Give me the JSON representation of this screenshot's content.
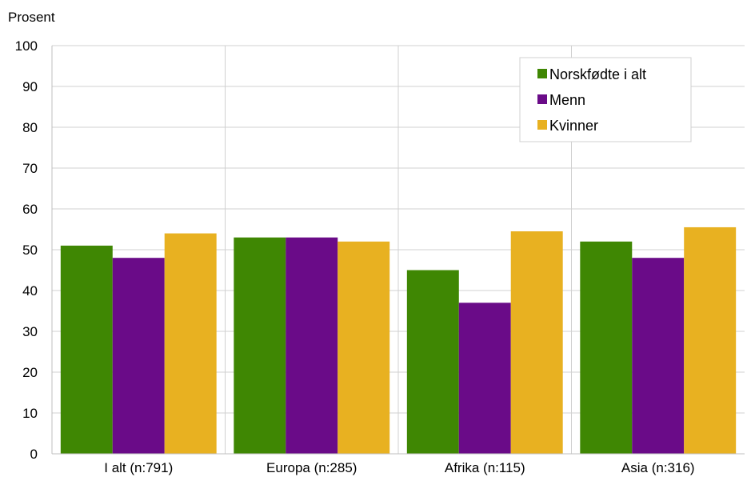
{
  "chart_data": {
    "type": "bar",
    "ylabel": "Prosent",
    "ylim": [
      0,
      100
    ],
    "yticks": [
      0,
      10,
      20,
      30,
      40,
      50,
      60,
      70,
      80,
      90,
      100
    ],
    "categories": [
      "I alt  (n:791)",
      "Europa (n:285)",
      "Afrika (n:115)",
      "Asia (n:316)"
    ],
    "series": [
      {
        "name": "Norskfødte i alt",
        "color": "#3f8703",
        "values": [
          51,
          53,
          45,
          52
        ]
      },
      {
        "name": "Menn",
        "color": "#6a0b88",
        "values": [
          48,
          53,
          37,
          48
        ]
      },
      {
        "name": "Kvinner",
        "color": "#e8b121",
        "values": [
          54,
          52,
          54.5,
          55.5
        ]
      }
    ],
    "grid": true,
    "legend_position": "top-right"
  }
}
